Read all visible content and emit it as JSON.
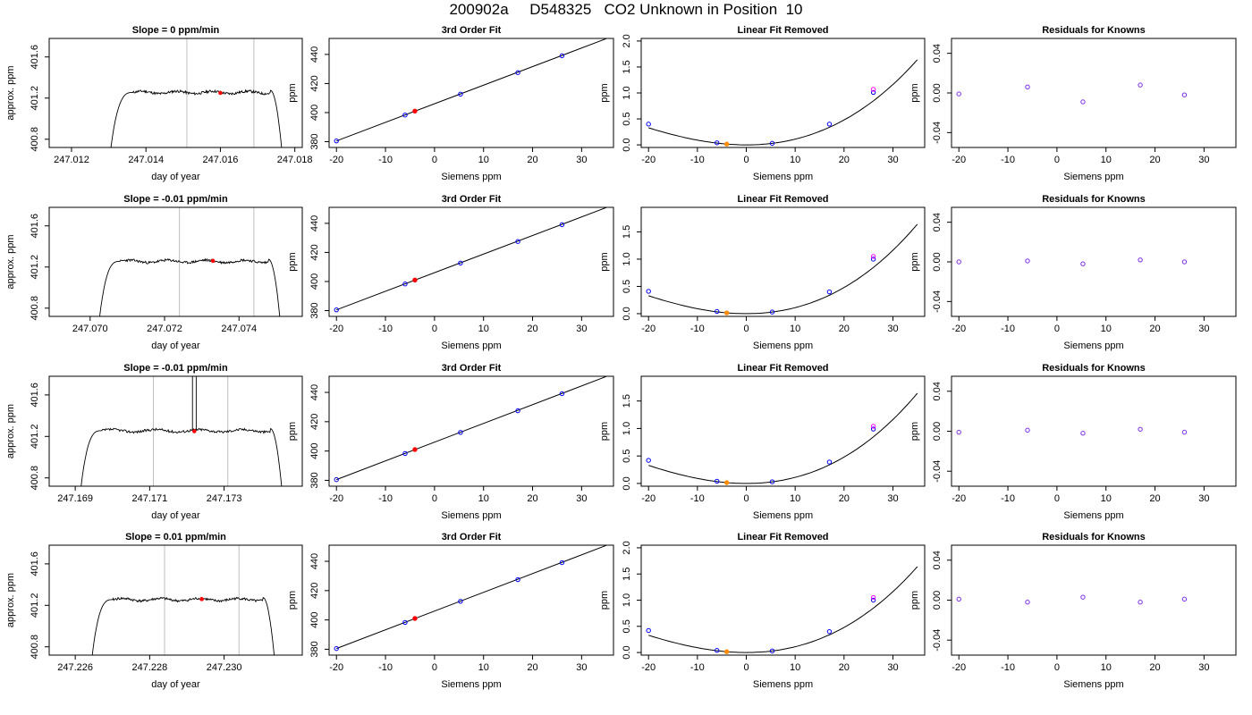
{
  "title": "200902a     D548325   CO2 Unknown in Position  10",
  "colors": {
    "axis": "#000000",
    "vline": "#bebebe",
    "red": "#ff0000",
    "orange": "#ff8c00",
    "blue": "#0000ff",
    "magenta": "#ff00ff",
    "purple": "#7d2be6"
  },
  "chart_data": [
    {
      "row": 0,
      "col": 0,
      "type": "line",
      "title": "Slope =  0  ppm/min",
      "xlabel": "day of year",
      "ylabel": "approx. ppm",
      "xlim": [
        247.0114,
        247.0182
      ],
      "ylim": [
        400.72,
        401.78
      ],
      "xticks": [
        247.012,
        247.014,
        247.016,
        247.018
      ],
      "xtick_labels": [
        "247.012",
        "247.014",
        "247.016",
        "247.018"
      ],
      "yticks": [
        400.8,
        401.2,
        401.6
      ],
      "ytick_labels": [
        "400.8",
        "401.2",
        "401.6"
      ],
      "trace": {
        "x_rise_start": 247.01305,
        "x_plateau_start": 247.01365,
        "x_plateau_end": 247.01735,
        "x_fall_end": 247.01765,
        "baseline": 400.7,
        "level": 401.255,
        "noise": 0.012,
        "seed": 11
      },
      "vlines": [
        247.0151,
        247.0169
      ],
      "marker": {
        "x": 247.016,
        "y": 401.25
      }
    },
    {
      "row": 0,
      "col": 1,
      "type": "line",
      "title": "3rd Order Fit",
      "xlabel": "Siemens ppm",
      "ylabel": "ppm",
      "xlim": [
        -21.5,
        36.5
      ],
      "ylim": [
        376,
        451
      ],
      "xticks": [
        -20,
        -10,
        0,
        10,
        20,
        30
      ],
      "xtick_labels": [
        "-20",
        "-10",
        "0",
        "10",
        "20",
        "30"
      ],
      "yticks": [
        380,
        400,
        420,
        440
      ],
      "ytick_labels": [
        "380",
        "400",
        "420",
        "440"
      ],
      "line": {
        "x1": -20,
        "y1": 380.5,
        "x2": 35,
        "y2": 450.8
      },
      "points": [
        {
          "x": -20,
          "y": 380.5,
          "color": "blue"
        },
        {
          "x": -6,
          "y": 398.3,
          "color": "blue"
        },
        {
          "x": 5.3,
          "y": 412.7,
          "color": "blue"
        },
        {
          "x": 17,
          "y": 427.5,
          "color": "blue"
        },
        {
          "x": 26,
          "y": 439.1,
          "color": "blue"
        },
        {
          "x": -4,
          "y": 401.0,
          "color": "red"
        }
      ]
    },
    {
      "row": 0,
      "col": 2,
      "type": "line",
      "title": "Linear Fit Removed",
      "xlabel": "Siemens ppm",
      "ylabel": "ppm",
      "xlim": [
        -21.5,
        36.5
      ],
      "ylim": [
        -0.05,
        2.05
      ],
      "xticks": [
        -20,
        -10,
        0,
        10,
        20,
        30
      ],
      "xtick_labels": [
        "-20",
        "-10",
        "0",
        "10",
        "20",
        "30"
      ],
      "yticks": [
        0,
        0.5,
        1,
        1.5,
        2
      ],
      "ytick_labels": [
        "0.0",
        "0.5",
        "1.0",
        "1.5",
        "2.0"
      ],
      "curve": {
        "x0": -20,
        "x1": 35,
        "x_min": 0,
        "a": 0.00101,
        "b": 9.4e-06
      },
      "points": [
        {
          "x": -20,
          "y": 0.4,
          "color": "blue"
        },
        {
          "x": -6,
          "y": 0.04,
          "color": "blue"
        },
        {
          "x": 5.3,
          "y": 0.03,
          "color": "blue"
        },
        {
          "x": 17,
          "y": 0.4,
          "color": "blue"
        },
        {
          "x": 26,
          "y": 1.01,
          "color": "blue"
        },
        {
          "x": 26,
          "y": 1.07,
          "color": "magenta"
        },
        {
          "x": -4,
          "y": 0.015,
          "color": "orange"
        }
      ]
    },
    {
      "row": 0,
      "col": 3,
      "type": "scatter",
      "title": "Residuals for Knowns",
      "xlabel": "Siemens ppm",
      "ylabel": "ppm",
      "xlim": [
        -21.5,
        36.5
      ],
      "ylim": [
        -0.055,
        0.055
      ],
      "xticks": [
        -20,
        -10,
        0,
        10,
        20,
        30
      ],
      "xtick_labels": [
        "-20",
        "-10",
        "0",
        "10",
        "20",
        "30"
      ],
      "yticks": [
        -0.04,
        0,
        0.04
      ],
      "ytick_labels": [
        "-0.04",
        "0.00",
        "0.04"
      ],
      "points": [
        {
          "x": -20,
          "y": -0.001,
          "color": "purple"
        },
        {
          "x": -6,
          "y": 0.006,
          "color": "purple"
        },
        {
          "x": 5.3,
          "y": -0.009,
          "color": "purple"
        },
        {
          "x": 17,
          "y": 0.008,
          "color": "purple"
        },
        {
          "x": 26,
          "y": -0.002,
          "color": "purple"
        }
      ]
    },
    {
      "row": 1,
      "col": 0,
      "type": "line",
      "title": "Slope =  -0.01  ppm/min",
      "xlabel": "day of year",
      "ylabel": "approx. ppm",
      "xlim": [
        247.0689,
        247.0757
      ],
      "ylim": [
        400.72,
        401.78
      ],
      "xticks": [
        247.07,
        247.072,
        247.074
      ],
      "xtick_labels": [
        "247.070",
        "247.072",
        "247.074"
      ],
      "yticks": [
        400.8,
        401.2,
        401.6
      ],
      "ytick_labels": [
        "400.8",
        "401.2",
        "401.6"
      ],
      "trace": {
        "x_rise_start": 247.07025,
        "x_plateau_start": 247.0708,
        "x_plateau_end": 247.0748,
        "x_fall_end": 247.0751,
        "baseline": 400.7,
        "level": 401.255,
        "noise": 0.012,
        "seed": 23
      },
      "vlines": [
        247.0724,
        247.0744
      ],
      "marker": {
        "x": 247.0733,
        "y": 401.26
      }
    },
    {
      "row": 1,
      "col": 1,
      "type": "line",
      "title": "3rd Order Fit",
      "xlabel": "Siemens ppm",
      "ylabel": "ppm",
      "xlim": [
        -21.5,
        36.5
      ],
      "ylim": [
        376,
        451
      ],
      "xticks": [
        -20,
        -10,
        0,
        10,
        20,
        30
      ],
      "xtick_labels": [
        "-20",
        "-10",
        "0",
        "10",
        "20",
        "30"
      ],
      "yticks": [
        380,
        400,
        420,
        440
      ],
      "ytick_labels": [
        "380",
        "400",
        "420",
        "440"
      ],
      "line": {
        "x1": -20,
        "y1": 380.5,
        "x2": 35,
        "y2": 450.8
      },
      "points": [
        {
          "x": -20,
          "y": 380.5,
          "color": "blue"
        },
        {
          "x": -6,
          "y": 398.3,
          "color": "blue"
        },
        {
          "x": 5.3,
          "y": 412.7,
          "color": "blue"
        },
        {
          "x": 17,
          "y": 427.5,
          "color": "blue"
        },
        {
          "x": 26,
          "y": 439.1,
          "color": "blue"
        },
        {
          "x": -4,
          "y": 401.0,
          "color": "red"
        }
      ]
    },
    {
      "row": 1,
      "col": 2,
      "type": "line",
      "title": "Linear Fit Removed",
      "xlabel": "Siemens ppm",
      "ylabel": "ppm",
      "xlim": [
        -21.5,
        36.5
      ],
      "ylim": [
        -0.05,
        1.95
      ],
      "xticks": [
        -20,
        -10,
        0,
        10,
        20,
        30
      ],
      "xtick_labels": [
        "-20",
        "-10",
        "0",
        "10",
        "20",
        "30"
      ],
      "yticks": [
        0,
        0.5,
        1,
        1.5
      ],
      "ytick_labels": [
        "0.0",
        "0.5",
        "1.0",
        "1.5"
      ],
      "curve": {
        "x0": -20,
        "x1": 35,
        "x_min": 0,
        "a": 0.00101,
        "b": 9.4e-06
      },
      "points": [
        {
          "x": -20,
          "y": 0.41,
          "color": "blue"
        },
        {
          "x": -6,
          "y": 0.04,
          "color": "blue"
        },
        {
          "x": 5.3,
          "y": 0.03,
          "color": "blue"
        },
        {
          "x": 17,
          "y": 0.4,
          "color": "blue"
        },
        {
          "x": 26,
          "y": 1.0,
          "color": "blue"
        },
        {
          "x": 26,
          "y": 1.05,
          "color": "magenta"
        },
        {
          "x": -4,
          "y": 0.015,
          "color": "orange"
        }
      ]
    },
    {
      "row": 1,
      "col": 3,
      "type": "scatter",
      "title": "Residuals for Knowns",
      "xlabel": "Siemens ppm",
      "ylabel": "ppm",
      "xlim": [
        -21.5,
        36.5
      ],
      "ylim": [
        -0.055,
        0.055
      ],
      "xticks": [
        -20,
        -10,
        0,
        10,
        20,
        30
      ],
      "xtick_labels": [
        "-20",
        "-10",
        "0",
        "10",
        "20",
        "30"
      ],
      "yticks": [
        -0.04,
        0,
        0.04
      ],
      "ytick_labels": [
        "-0.04",
        "0.00",
        "0.04"
      ],
      "points": [
        {
          "x": -20,
          "y": 0.0,
          "color": "purple"
        },
        {
          "x": -6,
          "y": 0.001,
          "color": "purple"
        },
        {
          "x": 5.3,
          "y": -0.002,
          "color": "purple"
        },
        {
          "x": 17,
          "y": 0.002,
          "color": "purple"
        },
        {
          "x": 26,
          "y": 0.0,
          "color": "purple"
        }
      ]
    },
    {
      "row": 2,
      "col": 0,
      "type": "line",
      "title": "Slope =  -0.01  ppm/min",
      "xlabel": "day of year",
      "ylabel": "approx. ppm",
      "xlim": [
        247.1683,
        247.1751
      ],
      "ylim": [
        400.72,
        401.78
      ],
      "xticks": [
        247.169,
        247.171,
        247.173
      ],
      "xtick_labels": [
        "247.169",
        "247.171",
        "247.173"
      ],
      "yticks": [
        400.8,
        401.2,
        401.6
      ],
      "ytick_labels": [
        "400.8",
        "401.2",
        "401.6"
      ],
      "trace": {
        "x_rise_start": 247.16915,
        "x_plateau_start": 247.1697,
        "x_plateau_end": 247.17425,
        "x_fall_end": 247.17455,
        "baseline": 400.7,
        "level": 401.255,
        "noise": 0.012,
        "seed": 37
      },
      "vlines": [
        247.1711,
        247.1731
      ],
      "marker": {
        "x": 247.1722,
        "y": 401.25
      },
      "spike": {
        "x1": 247.17215,
        "x2": 247.17225,
        "y": 401.95
      }
    },
    {
      "row": 2,
      "col": 1,
      "type": "line",
      "title": "3rd Order Fit",
      "xlabel": "Siemens ppm",
      "ylabel": "ppm",
      "xlim": [
        -21.5,
        36.5
      ],
      "ylim": [
        376,
        451
      ],
      "xticks": [
        -20,
        -10,
        0,
        10,
        20,
        30
      ],
      "xtick_labels": [
        "-20",
        "-10",
        "0",
        "10",
        "20",
        "30"
      ],
      "yticks": [
        380,
        400,
        420,
        440
      ],
      "ytick_labels": [
        "380",
        "400",
        "420",
        "440"
      ],
      "line": {
        "x1": -20,
        "y1": 380.5,
        "x2": 35,
        "y2": 450.8
      },
      "points": [
        {
          "x": -20,
          "y": 380.5,
          "color": "blue"
        },
        {
          "x": -6,
          "y": 398.3,
          "color": "blue"
        },
        {
          "x": 5.3,
          "y": 412.7,
          "color": "blue"
        },
        {
          "x": 17,
          "y": 427.5,
          "color": "blue"
        },
        {
          "x": 26,
          "y": 439.1,
          "color": "blue"
        },
        {
          "x": -4,
          "y": 401.0,
          "color": "red"
        }
      ]
    },
    {
      "row": 2,
      "col": 2,
      "type": "line",
      "title": "Linear Fit Removed",
      "xlabel": "Siemens ppm",
      "ylabel": "ppm",
      "xlim": [
        -21.5,
        36.5
      ],
      "ylim": [
        -0.05,
        1.95
      ],
      "xticks": [
        -20,
        -10,
        0,
        10,
        20,
        30
      ],
      "xtick_labels": [
        "-20",
        "-10",
        "0",
        "10",
        "20",
        "30"
      ],
      "yticks": [
        0,
        0.5,
        1,
        1.5
      ],
      "ytick_labels": [
        "0.0",
        "0.5",
        "1.0",
        "1.5"
      ],
      "curve": {
        "x0": -20,
        "x1": 35,
        "x_min": 0,
        "a": 0.00101,
        "b": 9.4e-06
      },
      "points": [
        {
          "x": -20,
          "y": 0.42,
          "color": "blue"
        },
        {
          "x": -6,
          "y": 0.04,
          "color": "blue"
        },
        {
          "x": 5.3,
          "y": 0.03,
          "color": "blue"
        },
        {
          "x": 17,
          "y": 0.39,
          "color": "blue"
        },
        {
          "x": 26,
          "y": 0.99,
          "color": "blue"
        },
        {
          "x": 26,
          "y": 1.04,
          "color": "magenta"
        },
        {
          "x": -4,
          "y": 0.015,
          "color": "orange"
        }
      ]
    },
    {
      "row": 2,
      "col": 3,
      "type": "scatter",
      "title": "Residuals for Knowns",
      "xlabel": "Siemens ppm",
      "ylabel": "ppm",
      "xlim": [
        -21.5,
        36.5
      ],
      "ylim": [
        -0.055,
        0.055
      ],
      "xticks": [
        -20,
        -10,
        0,
        10,
        20,
        30
      ],
      "xtick_labels": [
        "-20",
        "-10",
        "0",
        "10",
        "20",
        "30"
      ],
      "yticks": [
        -0.04,
        0,
        0.04
      ],
      "ytick_labels": [
        "-0.04",
        "0.00",
        "0.04"
      ],
      "points": [
        {
          "x": -20,
          "y": -0.001,
          "color": "purple"
        },
        {
          "x": -6,
          "y": 0.001,
          "color": "purple"
        },
        {
          "x": 5.3,
          "y": -0.002,
          "color": "purple"
        },
        {
          "x": 17,
          "y": 0.002,
          "color": "purple"
        },
        {
          "x": 26,
          "y": -0.001,
          "color": "purple"
        }
      ]
    },
    {
      "row": 3,
      "col": 0,
      "type": "line",
      "title": "Slope =  0.01  ppm/min",
      "xlabel": "day of year",
      "ylabel": "approx. ppm",
      "xlim": [
        247.2253,
        247.2321
      ],
      "ylim": [
        400.72,
        401.78
      ],
      "xticks": [
        247.226,
        247.228,
        247.23
      ],
      "xtick_labels": [
        "247.226",
        "247.228",
        "247.230"
      ],
      "yticks": [
        400.8,
        401.2,
        401.6
      ],
      "ytick_labels": [
        "400.8",
        "401.2",
        "401.6"
      ],
      "trace": {
        "x_rise_start": 247.22645,
        "x_plateau_start": 247.227,
        "x_plateau_end": 247.23105,
        "x_fall_end": 247.23135,
        "baseline": 400.7,
        "level": 401.255,
        "noise": 0.012,
        "seed": 41
      },
      "vlines": [
        247.2284,
        247.2304
      ],
      "marker": {
        "x": 247.2294,
        "y": 401.26
      }
    },
    {
      "row": 3,
      "col": 1,
      "type": "line",
      "title": "3rd Order Fit",
      "xlabel": "Siemens ppm",
      "ylabel": "ppm",
      "xlim": [
        -21.5,
        36.5
      ],
      "ylim": [
        376,
        451
      ],
      "xticks": [
        -20,
        -10,
        0,
        10,
        20,
        30
      ],
      "xtick_labels": [
        "-20",
        "-10",
        "0",
        "10",
        "20",
        "30"
      ],
      "yticks": [
        380,
        400,
        420,
        440
      ],
      "ytick_labels": [
        "380",
        "400",
        "420",
        "440"
      ],
      "line": {
        "x1": -20,
        "y1": 380.5,
        "x2": 35,
        "y2": 450.8
      },
      "points": [
        {
          "x": -20,
          "y": 380.5,
          "color": "blue"
        },
        {
          "x": -6,
          "y": 398.3,
          "color": "blue"
        },
        {
          "x": 5.3,
          "y": 412.7,
          "color": "blue"
        },
        {
          "x": 17,
          "y": 427.5,
          "color": "blue"
        },
        {
          "x": 26,
          "y": 439.1,
          "color": "blue"
        },
        {
          "x": -4,
          "y": 401.0,
          "color": "red"
        }
      ]
    },
    {
      "row": 3,
      "col": 2,
      "type": "line",
      "title": "Linear Fit Removed",
      "xlabel": "Siemens ppm",
      "ylabel": "ppm",
      "xlim": [
        -21.5,
        36.5
      ],
      "ylim": [
        -0.05,
        2.05
      ],
      "xticks": [
        -20,
        -10,
        0,
        10,
        20,
        30
      ],
      "xtick_labels": [
        "-20",
        "-10",
        "0",
        "10",
        "20",
        "30"
      ],
      "yticks": [
        0,
        0.5,
        1,
        1.5,
        2
      ],
      "ytick_labels": [
        "0.0",
        "0.5",
        "1.0",
        "1.5",
        "2.0"
      ],
      "curve": {
        "x0": -20,
        "x1": 35,
        "x_min": 0,
        "a": 0.00101,
        "b": 9.4e-06
      },
      "points": [
        {
          "x": -20,
          "y": 0.42,
          "color": "blue"
        },
        {
          "x": -6,
          "y": 0.04,
          "color": "blue"
        },
        {
          "x": 5.3,
          "y": 0.03,
          "color": "blue"
        },
        {
          "x": 17,
          "y": 0.4,
          "color": "blue"
        },
        {
          "x": 26,
          "y": 1.0,
          "color": "blue"
        },
        {
          "x": 26,
          "y": 1.05,
          "color": "magenta"
        },
        {
          "x": -4,
          "y": 0.015,
          "color": "orange"
        }
      ]
    },
    {
      "row": 3,
      "col": 3,
      "type": "scatter",
      "title": "Residuals for Knowns",
      "xlabel": "Siemens ppm",
      "ylabel": "ppm",
      "xlim": [
        -21.5,
        36.5
      ],
      "ylim": [
        -0.055,
        0.055
      ],
      "xticks": [
        -20,
        -10,
        0,
        10,
        20,
        30
      ],
      "xtick_labels": [
        "-20",
        "-10",
        "0",
        "10",
        "20",
        "30"
      ],
      "yticks": [
        -0.04,
        0,
        0.04
      ],
      "ytick_labels": [
        "-0.04",
        "0.00",
        "0.04"
      ],
      "points": [
        {
          "x": -20,
          "y": 0.001,
          "color": "purple"
        },
        {
          "x": -6,
          "y": -0.002,
          "color": "purple"
        },
        {
          "x": 5.3,
          "y": 0.003,
          "color": "purple"
        },
        {
          "x": 17,
          "y": -0.002,
          "color": "purple"
        },
        {
          "x": 26,
          "y": 0.001,
          "color": "purple"
        }
      ]
    }
  ]
}
